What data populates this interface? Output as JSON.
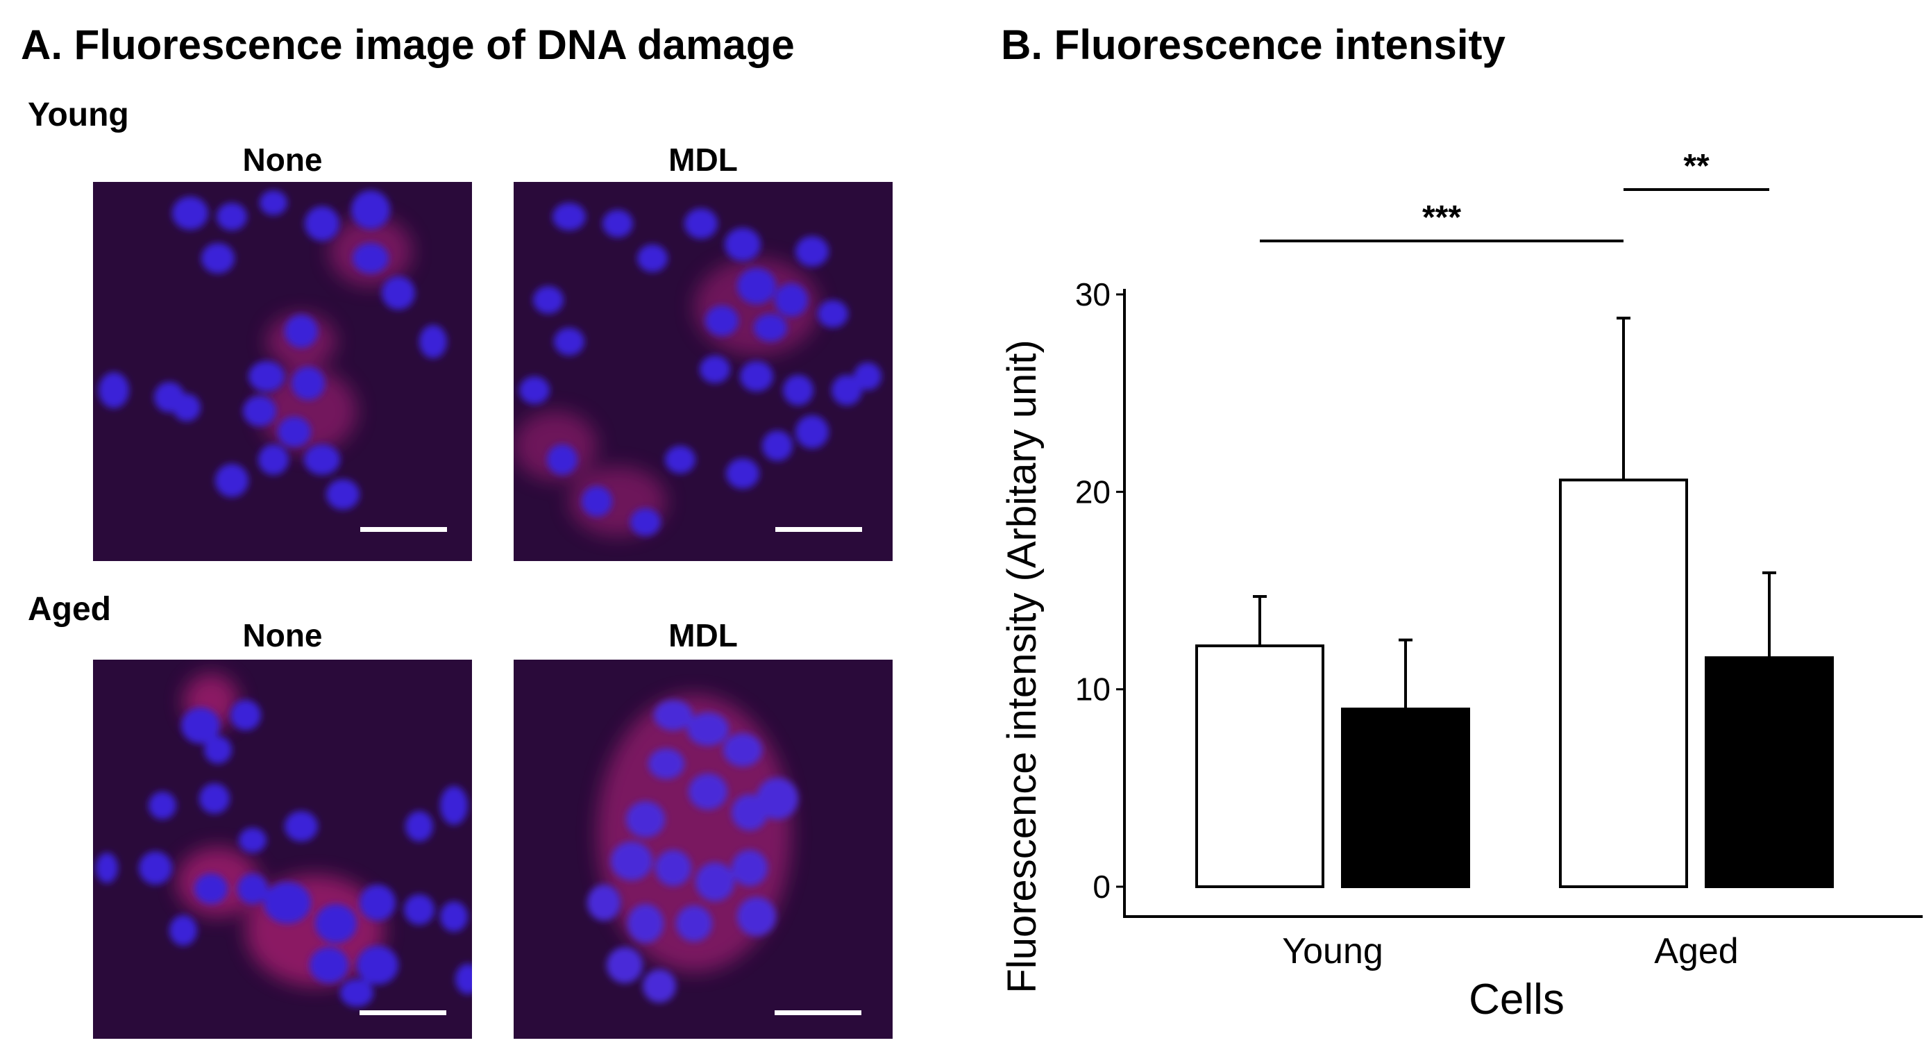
{
  "panel_a": {
    "title": "A. Fluorescence image of DNA damage",
    "rows": [
      {
        "label": "Young",
        "columns": [
          "None",
          "MDL"
        ]
      },
      {
        "label": "Aged",
        "columns": [
          "None",
          "MDL"
        ]
      }
    ],
    "colors": {
      "background": "#2a0a3a",
      "nucleus": "#3a24d8",
      "cytoplasm": "#c0207a",
      "scale_bar": "#ffffff"
    }
  },
  "panel_b": {
    "title": "B. Fluorescence intensity"
  },
  "chart_data": {
    "type": "bar",
    "categories": [
      "Young",
      "Aged"
    ],
    "series": [
      {
        "values": [
          12.2,
          20.6
        ],
        "errors": [
          2.5,
          8.2
        ],
        "fill": "#ffffff",
        "stroke": "#000000"
      },
      {
        "values": [
          9.0,
          11.6
        ],
        "errors": [
          3.5,
          4.3
        ],
        "fill": "#000000",
        "stroke": "#000000"
      }
    ],
    "xlabel": "Cells",
    "ylabel": "Fluorescence intensity (Arbitary unit)",
    "ylim": [
      0,
      30
    ],
    "yticks": [
      0,
      10,
      20,
      30
    ],
    "grid": false,
    "significance": [
      {
        "label": "***",
        "from": {
          "category": 0,
          "series": 0
        },
        "to": {
          "category": 1,
          "series": 0
        }
      },
      {
        "label": "**",
        "from": {
          "category": 1,
          "series": 0
        },
        "to": {
          "category": 1,
          "series": 1
        }
      }
    ]
  }
}
